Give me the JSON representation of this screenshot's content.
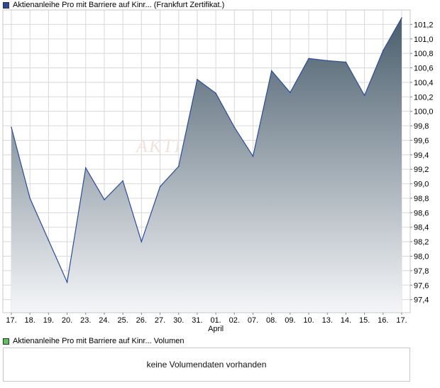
{
  "legend": {
    "price_label": "Aktienanleihe Pro mit Barriere auf Kinr... (Frankfurt Zertifikat.)",
    "volume_label": "Aktienanleihe Pro mit Barriere auf Kinr... Volumen"
  },
  "colors": {
    "price_swatch": "#2a4b9b",
    "volume_swatch": "#5cc35c",
    "line": "#2a4b9b",
    "fill_top": "#4a5e6d",
    "fill_bottom": "#f5f6f8",
    "grid": "#d8d8d8"
  },
  "watermark": "AKTIE",
  "volume_panel": {
    "message": "keine Volumendaten vorhanden"
  },
  "chart_data": {
    "type": "area",
    "title": "Aktienanleihe Pro mit Barriere auf Kinr... (Frankfurt Zertifikat.)",
    "x": [
      "17.",
      "18.",
      "19.",
      "20.",
      "23.",
      "24.",
      "25.",
      "26.",
      "27.",
      "30.",
      "31.",
      "01.",
      "02.",
      "07.",
      "08.",
      "09.",
      "10.",
      "13.",
      "14.",
      "15.",
      "16.",
      "17."
    ],
    "x_month_label": {
      "index": 11,
      "text": "April"
    },
    "series": [
      {
        "values": [
          99.78,
          98.8,
          98.22,
          97.64,
          99.22,
          98.78,
          99.04,
          98.2,
          98.96,
          99.24,
          100.44,
          100.25,
          99.78,
          99.38,
          100.56,
          100.26,
          100.73,
          100.7,
          100.68,
          100.22,
          100.84,
          101.29
        ]
      }
    ],
    "y_ticks": [
      97.4,
      97.6,
      97.8,
      98.0,
      98.2,
      98.4,
      98.6,
      98.8,
      99.0,
      99.2,
      99.4,
      99.6,
      99.8,
      100.0,
      100.2,
      100.4,
      100.6,
      100.8,
      101.0,
      101.2
    ],
    "y_tick_labels": [
      "97,4",
      "97,6",
      "97,8",
      "98,0",
      "98,2",
      "98,4",
      "98,6",
      "98,8",
      "99,0",
      "99,2",
      "99,4",
      "99,6",
      "99,8",
      "100,0",
      "100,2",
      "100,4",
      "100,6",
      "100,8",
      "101,0",
      "101,2"
    ],
    "ylim": [
      97.22,
      101.4
    ],
    "grid": true,
    "y_axis_side": "right",
    "xlabel": "",
    "ylabel": ""
  }
}
